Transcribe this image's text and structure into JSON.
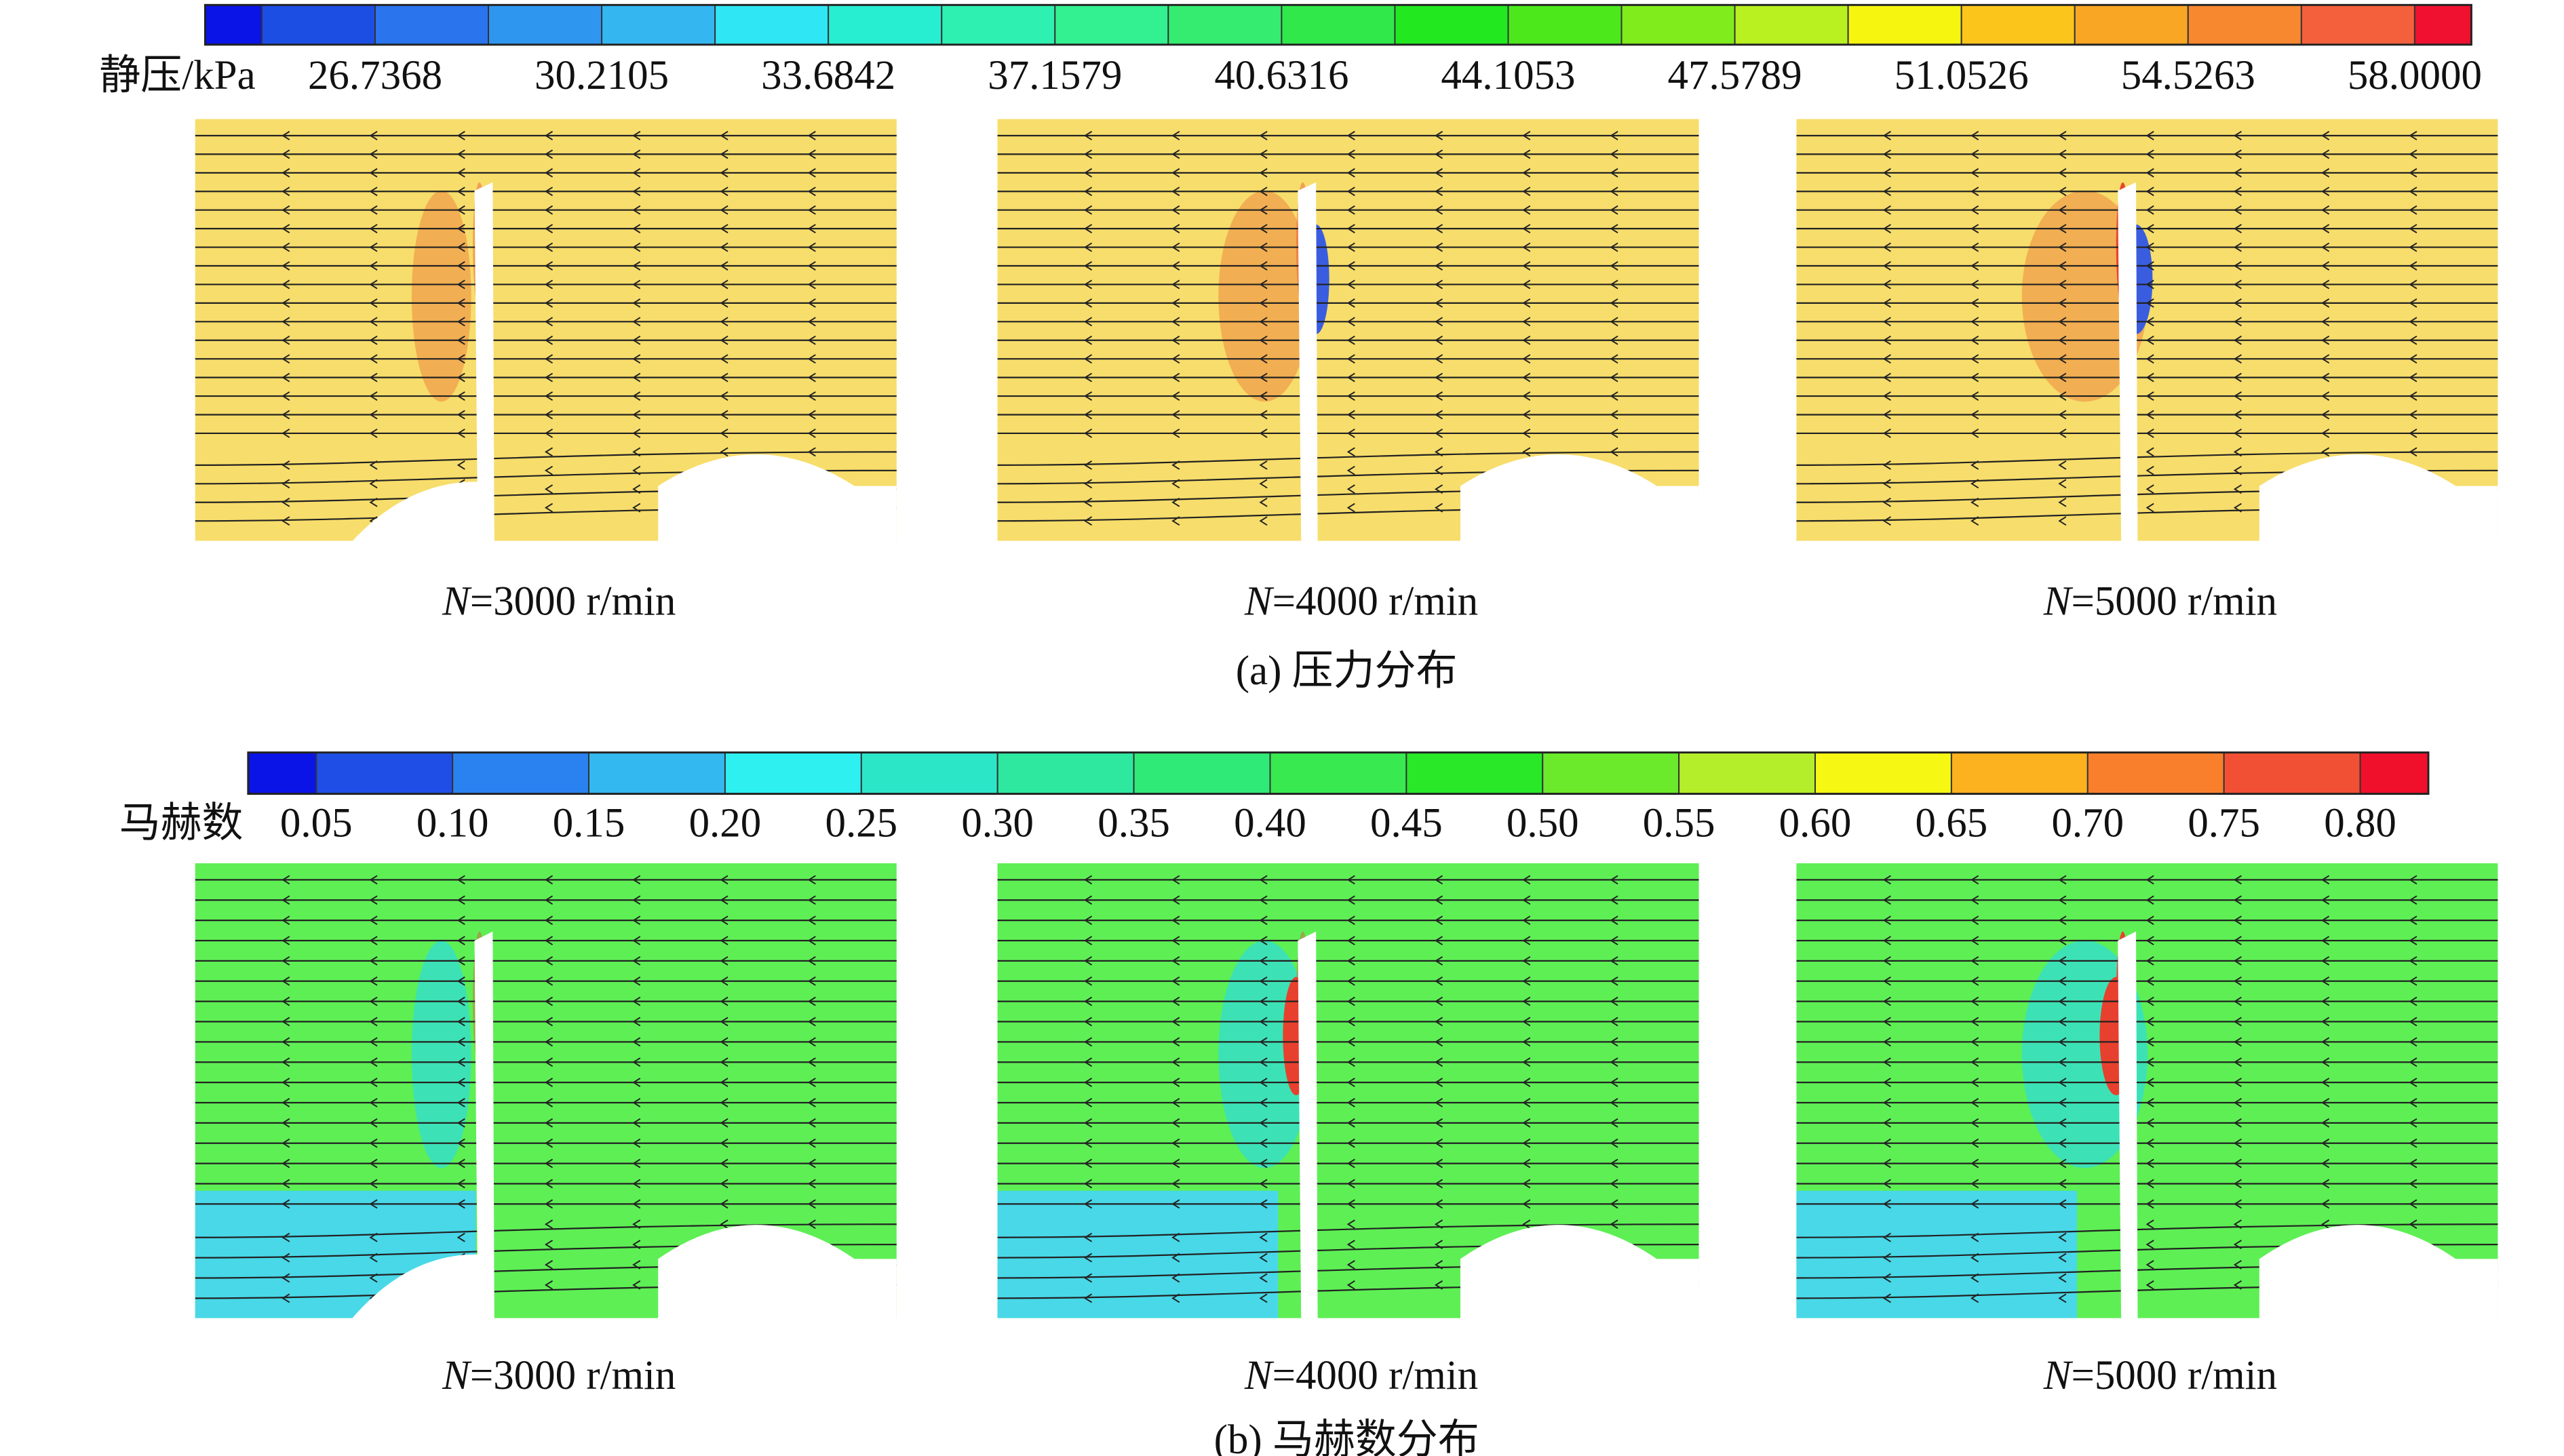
{
  "pressure": {
    "colorbar_label": "静压/kPa",
    "ticks": [
      "26.7368",
      "30.2105",
      "33.6842",
      "37.1579",
      "40.6316",
      "44.1053",
      "47.5789",
      "51.0526",
      "54.5263",
      "58.0000"
    ],
    "colors": [
      "#0a14e6",
      "#1d4ee4",
      "#2a74ee",
      "#2f96f0",
      "#34b6f0",
      "#2fe6f5",
      "#27eed0",
      "#2ef0b0",
      "#33f090",
      "#35ec70",
      "#30e84a",
      "#22e820",
      "#4ce81c",
      "#80ec1c",
      "#b8f020",
      "#f5f510",
      "#fcc51c",
      "#f9a624",
      "#f88830",
      "#f5603c",
      "#f01030"
    ],
    "panels": [
      {
        "variable": "N",
        "condition": "=3000 r/min"
      },
      {
        "variable": "N",
        "condition": "=4000 r/min"
      },
      {
        "variable": "N",
        "condition": "=5000 r/min"
      }
    ],
    "caption": "(a) 压力分布"
  },
  "mach": {
    "colorbar_label": "马赫数",
    "ticks": [
      "0.05",
      "0.10",
      "0.15",
      "0.20",
      "0.25",
      "0.30",
      "0.35",
      "0.40",
      "0.45",
      "0.50",
      "0.55",
      "0.60",
      "0.65",
      "0.70",
      "0.75",
      "0.80"
    ],
    "colors": [
      "#0a14e6",
      "#1f4ee6",
      "#2a82f0",
      "#33b8f0",
      "#2ef0f0",
      "#2ce6c8",
      "#2ee8a0",
      "#30ea78",
      "#38ea50",
      "#28e828",
      "#6aea2a",
      "#b4ee2a",
      "#f7f714",
      "#fcb11e",
      "#fa7f2c",
      "#f25034",
      "#f0102c"
    ],
    "panels": [
      {
        "variable": "N",
        "condition": "=3000 r/min"
      },
      {
        "variable": "N",
        "condition": "=4000 r/min"
      },
      {
        "variable": "N",
        "condition": "=5000 r/min"
      }
    ],
    "caption": "(b) 马赫数分布"
  }
}
